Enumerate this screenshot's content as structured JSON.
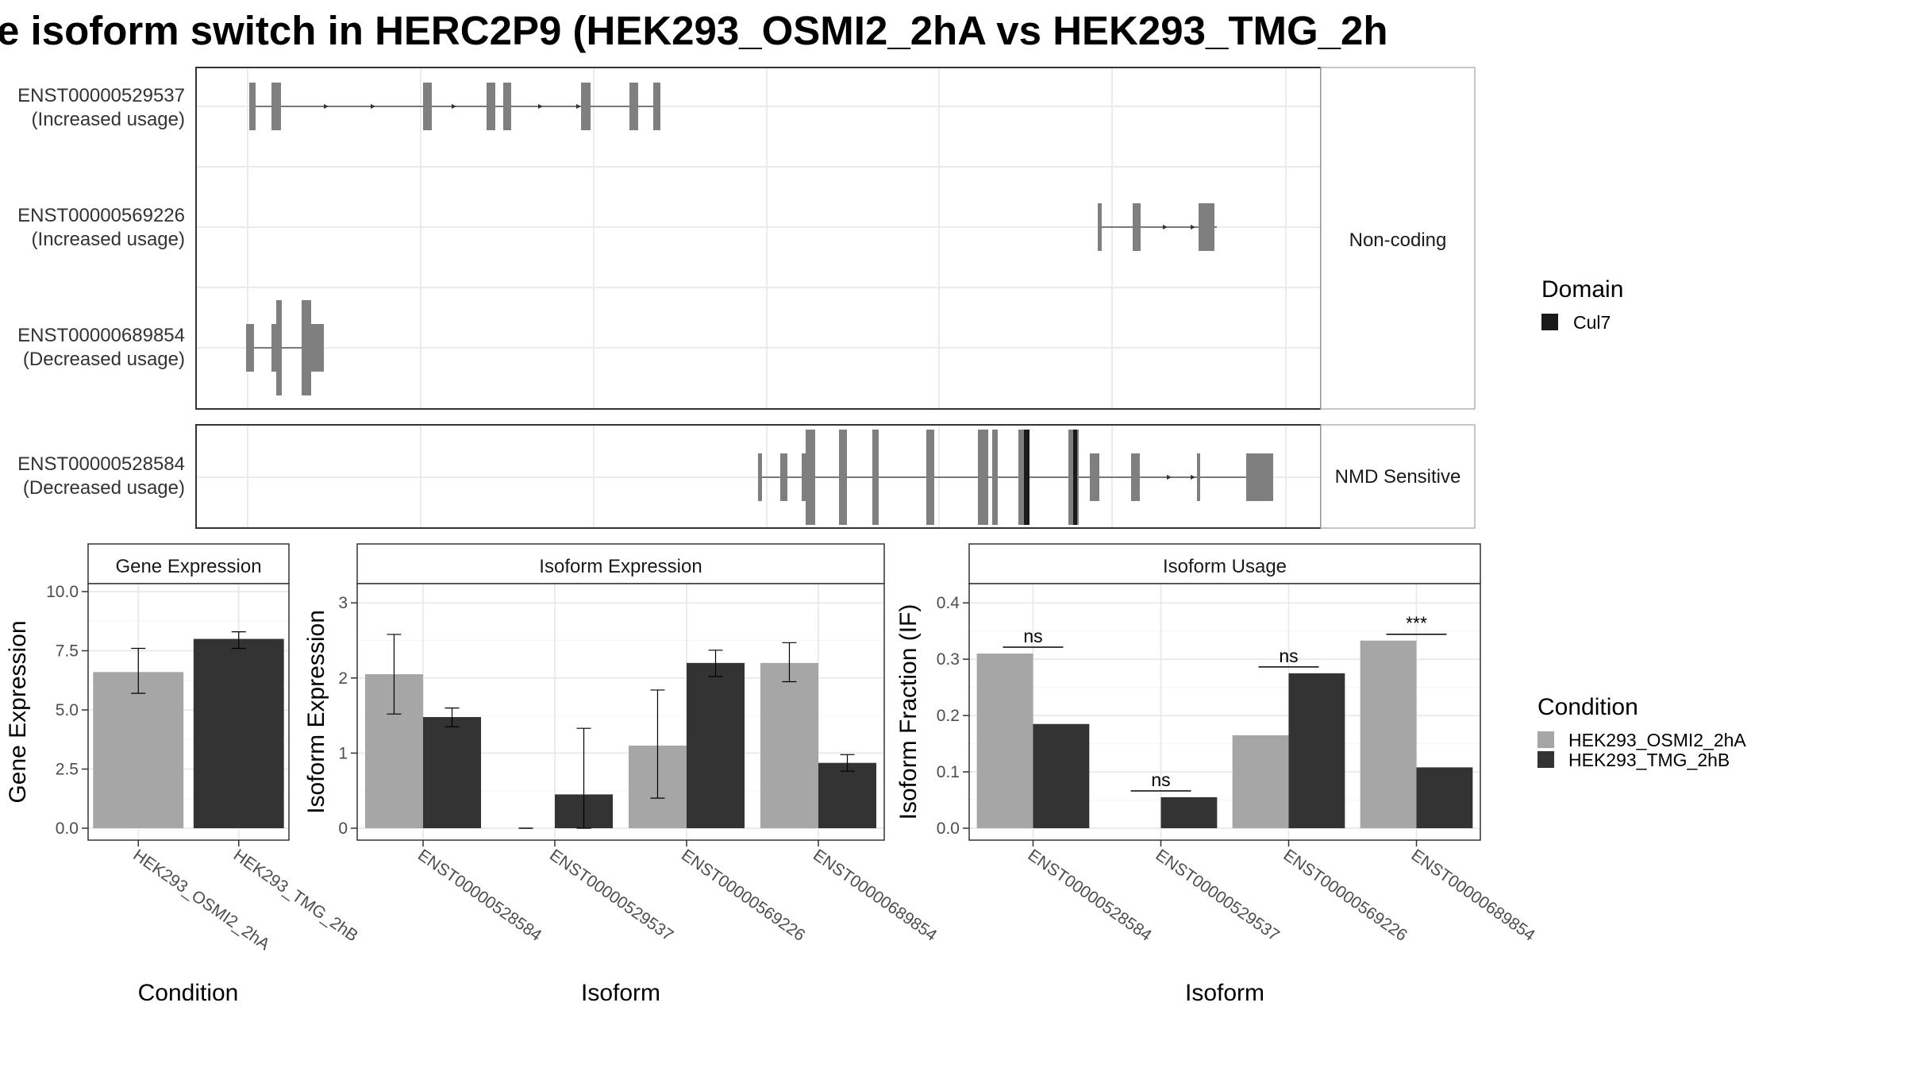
{
  "title": "e isoform switch in HERC2P9 (HEK293_OSMI2_2hA vs HEK293_TMG_2h",
  "colors": {
    "exon": "#7f7f7f",
    "domain": "#1a1a1a",
    "cond1": "#a6a6a6",
    "cond2": "#333333",
    "grid": "#ebebeb",
    "panel_border": "#333333",
    "strip_bg": "#ffffff"
  },
  "structure": {
    "transcripts": [
      {
        "id": "ENST00000529537",
        "usage": "(Increased usage)",
        "group": "Non-coding"
      },
      {
        "id": "ENST00000569226",
        "usage": "(Increased usage)",
        "group": "Non-coding"
      },
      {
        "id": "ENST00000689854",
        "usage": "(Decreased usage)",
        "group": "Non-coding"
      },
      {
        "id": "ENST00000528584",
        "usage": "(Decreased usage)",
        "group": "NMD Sensitive"
      }
    ],
    "groups": [
      "Non-coding",
      "NMD Sensitive"
    ]
  },
  "legend_domain": {
    "title": "Domain",
    "items": [
      {
        "label": "Cul7",
        "color": "#1a1a1a"
      }
    ]
  },
  "legend_condition": {
    "title": "Condition",
    "items": [
      {
        "label": "HEK293_OSMI2_2hA",
        "color": "#a6a6a6"
      },
      {
        "label": "HEK293_TMG_2hB",
        "color": "#333333"
      }
    ]
  },
  "chart_data": [
    {
      "type": "bar",
      "title": "Gene Expression",
      "xlabel": "Condition",
      "ylabel": "Gene Expression",
      "categories": [
        "HEK293_OSMI2_2hA",
        "HEK293_TMG_2hB"
      ],
      "values": [
        6.6,
        8.0
      ],
      "error_low": [
        5.7,
        7.6
      ],
      "error_high": [
        7.6,
        8.3
      ],
      "ylim": [
        0,
        10
      ],
      "yticks": [
        "0.0",
        "2.5",
        "5.0",
        "7.5",
        "10.0"
      ],
      "grid": true
    },
    {
      "type": "bar",
      "title": "Isoform Expression",
      "xlabel": "Isoform",
      "ylabel": "Isoform Expression",
      "categories": [
        "ENST00000528584",
        "ENST00000529537",
        "ENST00000569226",
        "ENST00000689854"
      ],
      "series": [
        {
          "name": "HEK293_OSMI2_2hA",
          "values": [
            2.05,
            0.0,
            1.1,
            2.2
          ],
          "error_low": [
            1.52,
            0.0,
            0.4,
            1.95
          ],
          "error_high": [
            2.58,
            0.0,
            1.84,
            2.47
          ]
        },
        {
          "name": "HEK293_TMG_2hB",
          "values": [
            1.48,
            0.45,
            2.2,
            0.87
          ],
          "error_low": [
            1.35,
            0.0,
            2.02,
            0.76
          ],
          "error_high": [
            1.6,
            1.33,
            2.37,
            0.98
          ]
        }
      ],
      "ylim": [
        0,
        3.15
      ],
      "yticks": [
        "0",
        "1",
        "2",
        "3"
      ],
      "grid": true
    },
    {
      "type": "bar",
      "title": "Isoform Usage",
      "xlabel": "Isoform",
      "ylabel": "Isoform Fraction (IF)",
      "categories": [
        "ENST00000528584",
        "ENST00000529537",
        "ENST00000569226",
        "ENST00000689854"
      ],
      "series": [
        {
          "name": "HEK293_OSMI2_2hA",
          "values": [
            0.31,
            0.0,
            0.165,
            0.333
          ]
        },
        {
          "name": "HEK293_TMG_2hB",
          "values": [
            0.185,
            0.055,
            0.275,
            0.108
          ]
        }
      ],
      "significance": [
        "ns",
        "ns",
        "ns",
        "***"
      ],
      "ylim": [
        0,
        0.42
      ],
      "yticks": [
        "0.0",
        "0.1",
        "0.2",
        "0.3",
        "0.4"
      ],
      "grid": true
    }
  ]
}
